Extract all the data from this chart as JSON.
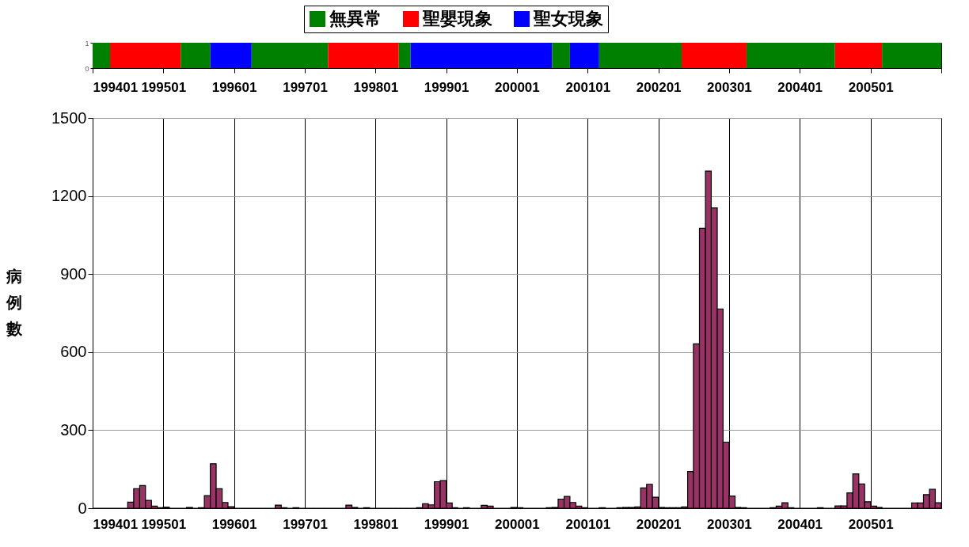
{
  "chart_data": [
    {
      "type": "bar",
      "legend": "top",
      "ylim": [
        0,
        1
      ],
      "yticks": [
        0,
        1
      ],
      "xlim": [
        "1994-01",
        "2006-01"
      ],
      "xticks": [
        {
          "value": "1994-01",
          "label": "199401"
        },
        {
          "value": "1995-01",
          "label": "199501"
        },
        {
          "value": "1996-01",
          "label": "199601"
        },
        {
          "value": "1997-01",
          "label": "199701"
        },
        {
          "value": "1998-01",
          "label": "199801"
        },
        {
          "value": "1999-01",
          "label": "199901"
        },
        {
          "value": "2000-01",
          "label": "200001"
        },
        {
          "value": "2001-01",
          "label": "200101"
        },
        {
          "value": "2002-01",
          "label": "200201"
        },
        {
          "value": "2003-01",
          "label": "200301"
        },
        {
          "value": "2004-01",
          "label": "200401"
        },
        {
          "value": "2005-01",
          "label": "200501"
        },
        {
          "value": "2006-01",
          "label": null
        }
      ],
      "bands": [
        {
          "axis": "x",
          "from": "1994-01",
          "to": "1994-04",
          "label": "無異常",
          "color": "#008000"
        },
        {
          "axis": "x",
          "from": "1994-04",
          "to": "1995-04",
          "label": "聖嬰現象",
          "color": "#ff0000"
        },
        {
          "axis": "x",
          "from": "1995-04",
          "to": "1995-09",
          "color": "#008000"
        },
        {
          "axis": "x",
          "from": "1995-09",
          "to": "1996-04",
          "label": "聖女現象",
          "color": "#0000ff"
        },
        {
          "axis": "x",
          "from": "1996-04",
          "to": "1997-05",
          "color": "#008000"
        },
        {
          "axis": "x",
          "from": "1997-05",
          "to": "1998-05",
          "color": "#ff0000"
        },
        {
          "axis": "x",
          "from": "1998-05",
          "to": "1998-07",
          "color": "#008000"
        },
        {
          "axis": "x",
          "from": "1998-07",
          "to": "2000-07",
          "color": "#0000ff"
        },
        {
          "axis": "x",
          "from": "2000-07",
          "to": "2000-10",
          "color": "#008000"
        },
        {
          "axis": "x",
          "from": "2000-10",
          "to": "2001-03",
          "color": "#0000ff"
        },
        {
          "axis": "x",
          "from": "2001-03",
          "to": "2002-05",
          "color": "#008000"
        },
        {
          "axis": "x",
          "from": "2002-05",
          "to": "2003-04",
          "color": "#ff0000"
        },
        {
          "axis": "x",
          "from": "2003-04",
          "to": "2004-07",
          "color": "#008000"
        },
        {
          "axis": "x",
          "from": "2004-07",
          "to": "2005-03",
          "color": "#ff0000"
        },
        {
          "axis": "x",
          "from": "2005-03",
          "to": "2006-01",
          "color": "#008000"
        }
      ]
    },
    {
      "type": "bar",
      "ylabel": "病例數",
      "color": "#993366",
      "grid": true,
      "ylim": [
        0,
        1500
      ],
      "yticks": [
        0,
        300,
        600,
        900,
        1200,
        1500
      ],
      "xlim": [
        "1994-01",
        "2006-01"
      ],
      "xticks": [
        {
          "value": "1994-01",
          "label": "199401"
        },
        {
          "value": "1995-01",
          "label": "199501"
        },
        {
          "value": "1996-01",
          "label": "199601"
        },
        {
          "value": "1997-01",
          "label": "199701"
        },
        {
          "value": "1998-01",
          "label": "199801"
        },
        {
          "value": "1999-01",
          "label": "199901"
        },
        {
          "value": "2000-01",
          "label": "200001"
        },
        {
          "value": "2001-01",
          "label": "200101"
        },
        {
          "value": "2002-01",
          "label": "200201"
        },
        {
          "value": "2003-01",
          "label": "200301"
        },
        {
          "value": "2004-01",
          "label": "200401"
        },
        {
          "value": "2005-01",
          "label": "200501"
        }
      ],
      "x": [
        "1994-01",
        "1994-02",
        "1994-03",
        "1994-04",
        "1994-05",
        "1994-06",
        "1994-07",
        "1994-08",
        "1994-09",
        "1994-10",
        "1994-11",
        "1994-12",
        "1995-01",
        "1995-02",
        "1995-03",
        "1995-04",
        "1995-05",
        "1995-06",
        "1995-07",
        "1995-08",
        "1995-09",
        "1995-10",
        "1995-11",
        "1995-12",
        "1996-01",
        "1996-02",
        "1996-03",
        "1996-04",
        "1996-05",
        "1996-06",
        "1996-07",
        "1996-08",
        "1996-09",
        "1996-10",
        "1996-11",
        "1996-12",
        "1997-01",
        "1997-02",
        "1997-03",
        "1997-04",
        "1997-05",
        "1997-06",
        "1997-07",
        "1997-08",
        "1997-09",
        "1997-10",
        "1997-11",
        "1997-12",
        "1998-01",
        "1998-02",
        "1998-03",
        "1998-04",
        "1998-05",
        "1998-06",
        "1998-07",
        "1998-08",
        "1998-09",
        "1998-10",
        "1998-11",
        "1998-12",
        "1999-01",
        "1999-02",
        "1999-03",
        "1999-04",
        "1999-05",
        "1999-06",
        "1999-07",
        "1999-08",
        "1999-09",
        "1999-10",
        "1999-11",
        "1999-12",
        "2000-01",
        "2000-02",
        "2000-03",
        "2000-04",
        "2000-05",
        "2000-06",
        "2000-07",
        "2000-08",
        "2000-09",
        "2000-10",
        "2000-11",
        "2000-12",
        "2001-01",
        "2001-02",
        "2001-03",
        "2001-04",
        "2001-05",
        "2001-06",
        "2001-07",
        "2001-08",
        "2001-09",
        "2001-10",
        "2001-11",
        "2001-12",
        "2002-01",
        "2002-02",
        "2002-03",
        "2002-04",
        "2002-05",
        "2002-06",
        "2002-07",
        "2002-08",
        "2002-09",
        "2002-10",
        "2002-11",
        "2002-12",
        "2003-01",
        "2003-02",
        "2003-03",
        "2003-04",
        "2003-05",
        "2003-06",
        "2003-07",
        "2003-08",
        "2003-09",
        "2003-10",
        "2003-11",
        "2003-12",
        "2004-01",
        "2004-02",
        "2004-03",
        "2004-04",
        "2004-05",
        "2004-06",
        "2004-07",
        "2004-08",
        "2004-09",
        "2004-10",
        "2004-11",
        "2004-12",
        "2005-01",
        "2005-02",
        "2005-03",
        "2005-04",
        "2005-05",
        "2005-06",
        "2005-07",
        "2005-08",
        "2005-09",
        "2005-10",
        "2005-11",
        "2005-12"
      ],
      "values": [
        0,
        0,
        0,
        0,
        0,
        0,
        23,
        75,
        87,
        30,
        8,
        2,
        4,
        0,
        0,
        0,
        3,
        0,
        2,
        48,
        171,
        75,
        22,
        6,
        0,
        0,
        0,
        0,
        0,
        0,
        0,
        12,
        2,
        0,
        2,
        0,
        0,
        0,
        0,
        0,
        0,
        0,
        0,
        12,
        3,
        0,
        2,
        0,
        0,
        0,
        0,
        0,
        0,
        0,
        0,
        2,
        17,
        13,
        102,
        106,
        20,
        2,
        0,
        2,
        0,
        0,
        11,
        8,
        0,
        0,
        0,
        3,
        2,
        0,
        0,
        0,
        0,
        2,
        3,
        35,
        45,
        22,
        8,
        2,
        0,
        0,
        2,
        0,
        0,
        2,
        3,
        3,
        5,
        78,
        92,
        42,
        3,
        2,
        2,
        2,
        5,
        141,
        632,
        1076,
        1296,
        1154,
        766,
        254,
        47,
        3,
        2,
        0,
        0,
        0,
        0,
        2,
        8,
        21,
        2,
        0,
        0,
        0,
        0,
        2,
        0,
        0,
        9,
        9,
        59,
        132,
        93,
        25,
        8,
        3,
        0,
        0,
        0,
        0,
        0,
        20,
        20,
        52,
        73,
        21
      ]
    }
  ]
}
